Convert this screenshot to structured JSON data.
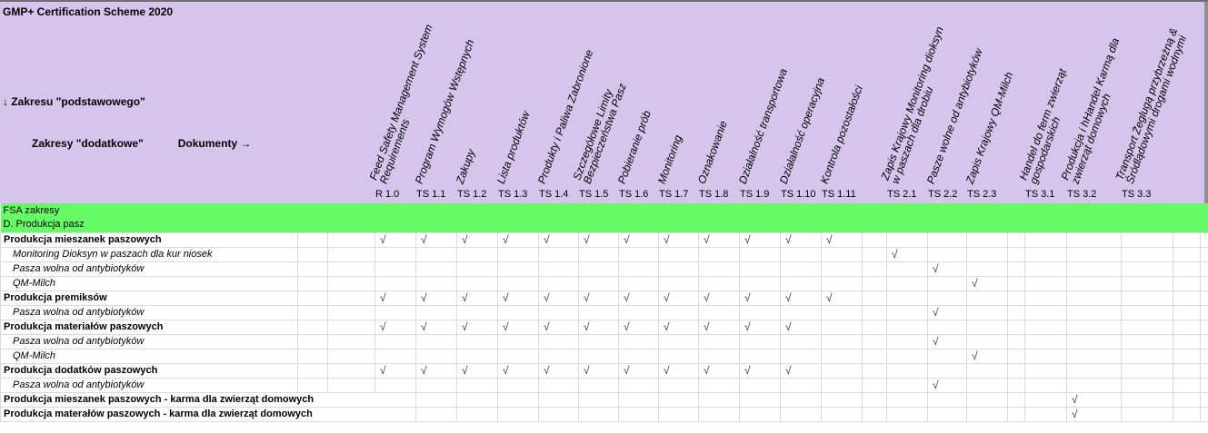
{
  "header": {
    "title": "GMP+ Certification Scheme 2020",
    "row_axis_arrow": "↓",
    "row_axis_label": "Zakresu \"podstawowego\"",
    "col_axis_label": "Zakresy \"dodatkowe\"",
    "documents_label": "Dokumenty",
    "documents_arrow": "→"
  },
  "checkmark": "√",
  "colors": {
    "header_bg": "#d5c5ec",
    "section_bg": "#66fb66",
    "grid": "#dadada",
    "check": "#2d2d55"
  },
  "columns": [
    {
      "code": "R 1.0",
      "label": "Feed Safety Management System\nRequirements"
    },
    {
      "code": "TS 1.1",
      "label": "Program Wymogów Wstępnych"
    },
    {
      "code": "TS 1.2",
      "label": "Zakupy"
    },
    {
      "code": "TS 1.3",
      "label": "Lista produktów"
    },
    {
      "code": "TS 1.4",
      "label": "Produkty i Paliwa Zabronione"
    },
    {
      "code": "TS 1.5",
      "label": "Szczegółowe Limity\nBezpieczeństwa Pasz"
    },
    {
      "code": "TS 1.6",
      "label": "Pobieranie prób"
    },
    {
      "code": "TS 1.7",
      "label": "Monitoring"
    },
    {
      "code": "TS 1.8",
      "label": "Oznakowanie"
    },
    {
      "code": "TS 1.9",
      "label": "Działalność transportowa"
    },
    {
      "code": "TS 1.10",
      "label": "Działalność operacyjna"
    },
    {
      "code": "TS 1.11",
      "label": "Kontrola pozostałości"
    },
    {
      "code": "TS 2.1",
      "label": "Zapis Krajowy Monitoring dioksyn\nw paszach dla drobiu"
    },
    {
      "code": "TS 2.2",
      "label": "Pasze wolne od antybiotyków"
    },
    {
      "code": "TS 2.3",
      "label": "Zapis Krajowy QM-Milch"
    },
    {
      "code": "TS 3.1",
      "label": "Handel do ferm zwierząt\ngospodarskich"
    },
    {
      "code": "TS 3.2",
      "label": "Produkcja i hHandel Karmą dla\nzwierząt domowych"
    },
    {
      "code": "TS 3.3",
      "label": "Transport Żeglugą przybrzeżną &\nŚródlądowymi drogami wodnymi"
    }
  ],
  "sections": [
    {
      "label": "FSA zakresy"
    },
    {
      "label": "D. Produkcja pasz"
    }
  ],
  "rows": [
    {
      "label": "Produkcja mieszanek paszowych",
      "style": "bold",
      "checks": [
        "R 1.0",
        "TS 1.1",
        "TS 1.2",
        "TS 1.3",
        "TS 1.4",
        "TS 1.5",
        "TS 1.6",
        "TS 1.7",
        "TS 1.8",
        "TS 1.9",
        "TS 1.10",
        "TS 1.11"
      ]
    },
    {
      "label": "Monitoring Dioksyn w paszach dla kur niosek",
      "style": "italic",
      "checks": [
        "TS 2.1"
      ]
    },
    {
      "label": "Pasza wolna od antybiotyków",
      "style": "italic",
      "checks": [
        "TS 2.2"
      ]
    },
    {
      "label": "QM-Milch",
      "style": "italic",
      "checks": [
        "TS 2.3"
      ]
    },
    {
      "label": "Produkcja premiksów",
      "style": "bold",
      "checks": [
        "R 1.0",
        "TS 1.1",
        "TS 1.2",
        "TS 1.3",
        "TS 1.4",
        "TS 1.5",
        "TS 1.6",
        "TS 1.7",
        "TS 1.8",
        "TS 1.9",
        "TS 1.10",
        "TS 1.11"
      ]
    },
    {
      "label": "Pasza wolna od antybiotyków",
      "style": "italic",
      "checks": [
        "TS 2.2"
      ]
    },
    {
      "label": "Produkcja materiałów paszowych",
      "style": "bold",
      "checks": [
        "R 1.0",
        "TS 1.1",
        "TS 1.2",
        "TS 1.3",
        "TS 1.4",
        "TS 1.5",
        "TS 1.6",
        "TS 1.7",
        "TS 1.8",
        "TS 1.9",
        "TS 1.10"
      ]
    },
    {
      "label": "Pasza wolna od antybiotyków",
      "style": "italic",
      "checks": [
        "TS 2.2"
      ]
    },
    {
      "label": "QM-Milch",
      "style": "italic",
      "checks": [
        "TS 2.3"
      ]
    },
    {
      "label": "Produkcja dodatków paszowych",
      "style": "bold",
      "checks": [
        "R 1.0",
        "TS 1.1",
        "TS 1.2",
        "TS 1.3",
        "TS 1.4",
        "TS 1.5",
        "TS 1.6",
        "TS 1.7",
        "TS 1.8",
        "TS 1.9",
        "TS 1.10"
      ]
    },
    {
      "label": "Pasza wolna od antybiotyków",
      "style": "italic",
      "checks": [
        "TS 2.2"
      ]
    },
    {
      "label": "Produkcja mieszanek paszowych - karma dla zwierząt domowych",
      "style": "bold",
      "wide": true,
      "checks": [
        "TS 3.2"
      ]
    },
    {
      "label": "Produkcja materałów paszowych - karma dla zwierząt domowych",
      "style": "bold",
      "wide": true,
      "checks": [
        "TS 3.2"
      ]
    }
  ]
}
